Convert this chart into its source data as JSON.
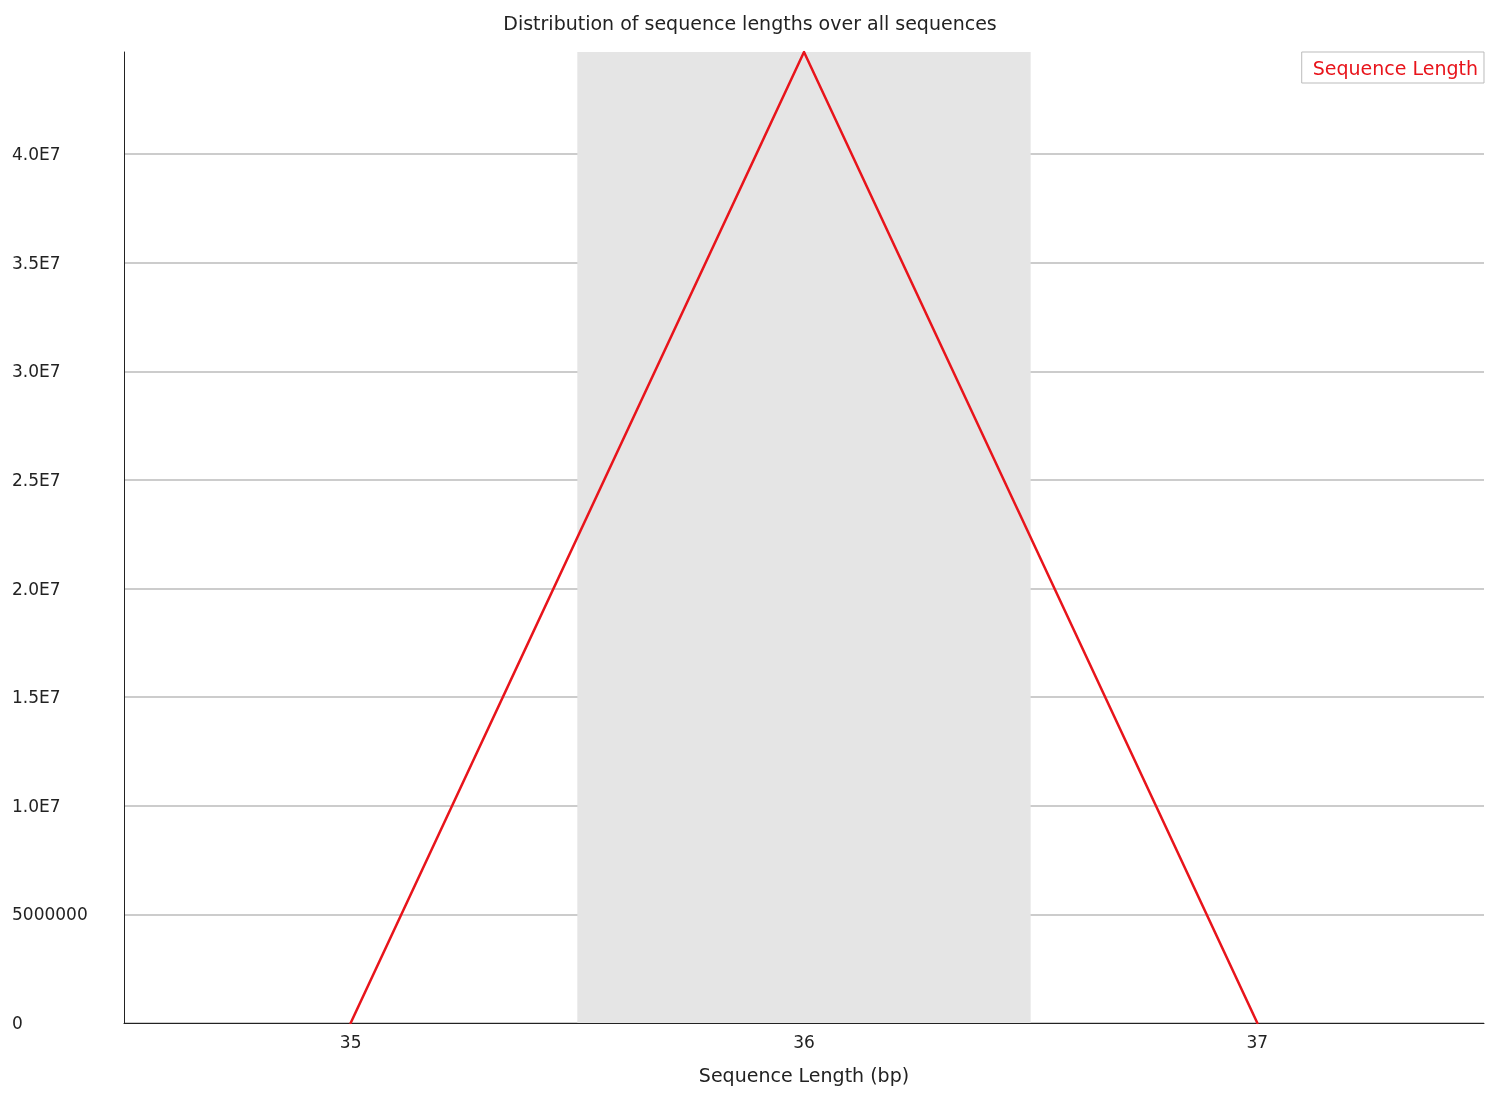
{
  "chart_data": {
    "type": "line",
    "title": "Distribution of sequence lengths over all sequences",
    "xlabel": "Sequence Length (bp)",
    "x": [
      35,
      36,
      37
    ],
    "series": [
      {
        "name": "Sequence Length",
        "color": "#e8141b",
        "values": [
          0,
          44700000,
          0
        ]
      }
    ],
    "xlim": [
      34.5,
      37.5
    ],
    "xticks": [
      35,
      36,
      37
    ],
    "ylim": [
      0,
      44700000
    ],
    "yticks": [
      0,
      5000000,
      {
        "value": 10000000,
        "label": "1.0E7"
      },
      {
        "value": 15000000,
        "label": "1.5E7"
      },
      {
        "value": 20000000,
        "label": "2.0E7"
      },
      {
        "value": 25000000,
        "label": "2.5E7"
      },
      {
        "value": 30000000,
        "label": "3.0E7"
      },
      {
        "value": 35000000,
        "label": "3.5E7"
      },
      {
        "value": 40000000,
        "label": "4.0E7"
      }
    ],
    "bands": [
      {
        "axis": "x",
        "from": 35.5,
        "to": 36.5,
        "color": "#e5e5e5"
      }
    ],
    "grid": "y",
    "legend": "top right",
    "marker": "none",
    "line_style": "solid"
  }
}
